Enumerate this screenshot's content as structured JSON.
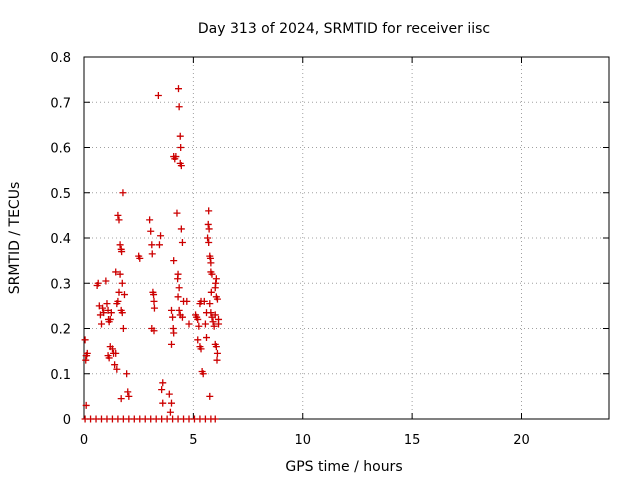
{
  "chart_data": {
    "type": "scatter",
    "title": "Day 313 of 2024, SRMTID for receiver iisc",
    "xlabel": "GPS time / hours",
    "ylabel": "SRMTID / TECUs",
    "xlim": [
      0,
      24
    ],
    "ylim": [
      0,
      0.8
    ],
    "grid": true,
    "marker": "plus",
    "marker_color": "#cc0000",
    "xticks": [
      {
        "value": 0,
        "label": "0"
      },
      {
        "value": 5,
        "label": "5"
      },
      {
        "value": 10,
        "label": "10"
      },
      {
        "value": 15,
        "label": "15"
      },
      {
        "value": 20,
        "label": "20"
      }
    ],
    "yticks": [
      {
        "value": 0,
        "label": "0"
      },
      {
        "value": 0.1,
        "label": "0.1"
      },
      {
        "value": 0.2,
        "label": "0.2"
      },
      {
        "value": 0.3,
        "label": "0.3"
      },
      {
        "value": 0.4,
        "label": "0.4"
      },
      {
        "value": 0.5,
        "label": "0.5"
      },
      {
        "value": 0.6,
        "label": "0.6"
      },
      {
        "value": 0.7,
        "label": "0.7"
      },
      {
        "value": 0.8,
        "label": "0.8"
      }
    ],
    "series": [
      {
        "name": "SRMTID",
        "points": [
          [
            0.05,
            0.175
          ],
          [
            0.08,
            0.13
          ],
          [
            0.1,
            0.14
          ],
          [
            0.12,
            0.14
          ],
          [
            0.15,
            0.145
          ],
          [
            0.1,
            0.03
          ],
          [
            0.6,
            0.295
          ],
          [
            0.65,
            0.3
          ],
          [
            0.7,
            0.25
          ],
          [
            0.75,
            0.23
          ],
          [
            0.8,
            0.21
          ],
          [
            0.85,
            0.245
          ],
          [
            0.9,
            0.235
          ],
          [
            1.0,
            0.305
          ],
          [
            1.05,
            0.255
          ],
          [
            1.1,
            0.24
          ],
          [
            1.12,
            0.22
          ],
          [
            1.15,
            0.215
          ],
          [
            1.2,
            0.22
          ],
          [
            1.25,
            0.235
          ],
          [
            1.1,
            0.14
          ],
          [
            1.15,
            0.135
          ],
          [
            1.2,
            0.16
          ],
          [
            1.3,
            0.155
          ],
          [
            1.35,
            0.145
          ],
          [
            1.4,
            0.12
          ],
          [
            1.45,
            0.145
          ],
          [
            1.5,
            0.11
          ],
          [
            1.45,
            0.325
          ],
          [
            1.5,
            0.255
          ],
          [
            1.55,
            0.26
          ],
          [
            1.6,
            0.28
          ],
          [
            1.55,
            0.45
          ],
          [
            1.6,
            0.44
          ],
          [
            1.65,
            0.385
          ],
          [
            1.7,
            0.375
          ],
          [
            1.72,
            0.37
          ],
          [
            1.65,
            0.32
          ],
          [
            1.75,
            0.3
          ],
          [
            1.78,
            0.5
          ],
          [
            1.7,
            0.24
          ],
          [
            1.75,
            0.235
          ],
          [
            1.8,
            0.2
          ],
          [
            1.85,
            0.275
          ],
          [
            1.7,
            0.045
          ],
          [
            1.95,
            0.1
          ],
          [
            2.0,
            0.06
          ],
          [
            2.05,
            0.05
          ],
          [
            2.5,
            0.36
          ],
          [
            2.55,
            0.355
          ],
          [
            3.0,
            0.44
          ],
          [
            3.05,
            0.415
          ],
          [
            3.1,
            0.385
          ],
          [
            3.12,
            0.365
          ],
          [
            3.15,
            0.28
          ],
          [
            3.18,
            0.275
          ],
          [
            3.2,
            0.26
          ],
          [
            3.22,
            0.245
          ],
          [
            3.1,
            0.2
          ],
          [
            3.2,
            0.195
          ],
          [
            3.4,
            0.715
          ],
          [
            3.5,
            0.405
          ],
          [
            3.45,
            0.385
          ],
          [
            3.6,
            0.08
          ],
          [
            3.55,
            0.065
          ],
          [
            3.6,
            0.035
          ],
          [
            3.9,
            0.055
          ],
          [
            4.0,
            0.035
          ],
          [
            3.95,
            0.015
          ],
          [
            4.0,
            0.24
          ],
          [
            4.05,
            0.225
          ],
          [
            4.08,
            0.2
          ],
          [
            4.1,
            0.19
          ],
          [
            4.0,
            0.165
          ],
          [
            4.1,
            0.35
          ],
          [
            4.1,
            0.58
          ],
          [
            4.15,
            0.575
          ],
          [
            4.2,
            0.58
          ],
          [
            4.25,
            0.455
          ],
          [
            4.3,
            0.32
          ],
          [
            4.28,
            0.31
          ],
          [
            4.35,
            0.29
          ],
          [
            4.3,
            0.27
          ],
          [
            4.32,
            0.73
          ],
          [
            4.35,
            0.69
          ],
          [
            4.4,
            0.625
          ],
          [
            4.42,
            0.6
          ],
          [
            4.4,
            0.565
          ],
          [
            4.45,
            0.56
          ],
          [
            4.45,
            0.42
          ],
          [
            4.5,
            0.39
          ],
          [
            4.35,
            0.24
          ],
          [
            4.4,
            0.23
          ],
          [
            4.5,
            0.225
          ],
          [
            4.55,
            0.26
          ],
          [
            4.7,
            0.26
          ],
          [
            4.8,
            0.21
          ],
          [
            5.1,
            0.23
          ],
          [
            5.15,
            0.225
          ],
          [
            5.2,
            0.22
          ],
          [
            5.25,
            0.205
          ],
          [
            5.3,
            0.255
          ],
          [
            5.35,
            0.26
          ],
          [
            5.2,
            0.175
          ],
          [
            5.3,
            0.16
          ],
          [
            5.35,
            0.155
          ],
          [
            5.4,
            0.105
          ],
          [
            5.45,
            0.1
          ],
          [
            5.5,
            0.26
          ],
          [
            5.55,
            0.21
          ],
          [
            5.6,
            0.235
          ],
          [
            5.6,
            0.18
          ],
          [
            5.7,
            0.46
          ],
          [
            5.68,
            0.43
          ],
          [
            5.72,
            0.42
          ],
          [
            5.65,
            0.4
          ],
          [
            5.7,
            0.39
          ],
          [
            5.75,
            0.36
          ],
          [
            5.78,
            0.355
          ],
          [
            5.8,
            0.345
          ],
          [
            5.8,
            0.325
          ],
          [
            5.85,
            0.32
          ],
          [
            5.82,
            0.28
          ],
          [
            5.75,
            0.255
          ],
          [
            5.8,
            0.235
          ],
          [
            5.85,
            0.225
          ],
          [
            5.75,
            0.05
          ],
          [
            5.9,
            0.215
          ],
          [
            5.95,
            0.205
          ],
          [
            6.0,
            0.23
          ],
          [
            6.02,
            0.3
          ],
          [
            6.05,
            0.31
          ],
          [
            6.0,
            0.29
          ],
          [
            6.05,
            0.27
          ],
          [
            6.1,
            0.265
          ],
          [
            6.0,
            0.165
          ],
          [
            6.05,
            0.16
          ],
          [
            6.08,
            0.13
          ],
          [
            6.1,
            0.145
          ],
          [
            6.15,
            0.22
          ],
          [
            6.15,
            0.21
          ],
          [
            0.05,
            0
          ],
          [
            0.3,
            0
          ],
          [
            0.55,
            0
          ],
          [
            0.8,
            0
          ],
          [
            1.05,
            0
          ],
          [
            1.3,
            0
          ],
          [
            1.55,
            0
          ],
          [
            1.8,
            0
          ],
          [
            2.05,
            0
          ],
          [
            2.3,
            0
          ],
          [
            2.55,
            0
          ],
          [
            2.8,
            0
          ],
          [
            3.05,
            0
          ],
          [
            3.3,
            0
          ],
          [
            3.55,
            0
          ],
          [
            3.8,
            0
          ],
          [
            4.05,
            0
          ],
          [
            4.3,
            0
          ],
          [
            4.55,
            0
          ],
          [
            4.8,
            0
          ],
          [
            5.05,
            0
          ],
          [
            5.3,
            0
          ],
          [
            5.55,
            0
          ],
          [
            5.8,
            0
          ],
          [
            6.0,
            0
          ]
        ]
      }
    ]
  }
}
